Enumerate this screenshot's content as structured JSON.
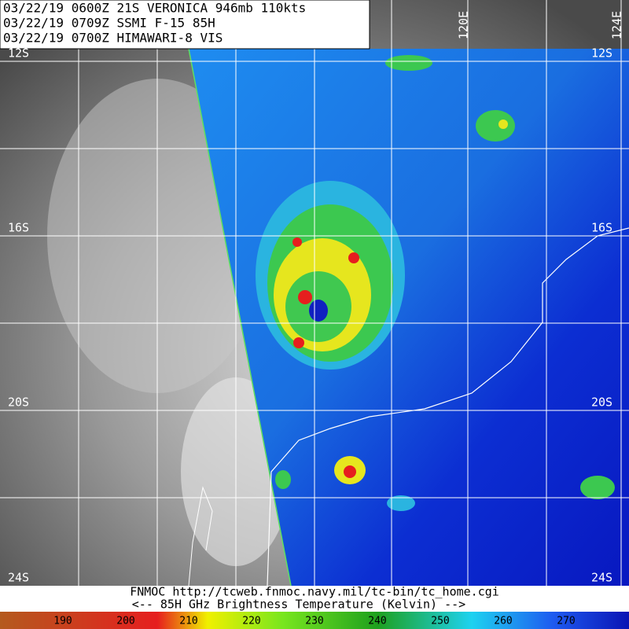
{
  "header": {
    "lines": [
      "03/22/19 0600Z  21S VERONICA 946mb 110kts",
      "03/22/19 0709Z  SSMI F-15 85H",
      "03/22/19 0700Z  HIMAWARI-8 VIS"
    ]
  },
  "grid": {
    "lat_labels_left": [
      "12S",
      "16S",
      "20S",
      "24S"
    ],
    "lat_labels_right": [
      "12S",
      "16S",
      "20S",
      "24S"
    ],
    "lon_labels": [
      "120E",
      "124E"
    ]
  },
  "footer": {
    "credit": "FNMOC  http://tcweb.fnmoc.navy.mil/tc-bin/tc_home.cgi",
    "caption": "<--  85H GHz Brightness Temperature (Kelvin)  -->"
  },
  "colorbar": {
    "ticks": [
      190,
      200,
      210,
      220,
      230,
      240,
      250,
      260,
      270
    ]
  }
}
